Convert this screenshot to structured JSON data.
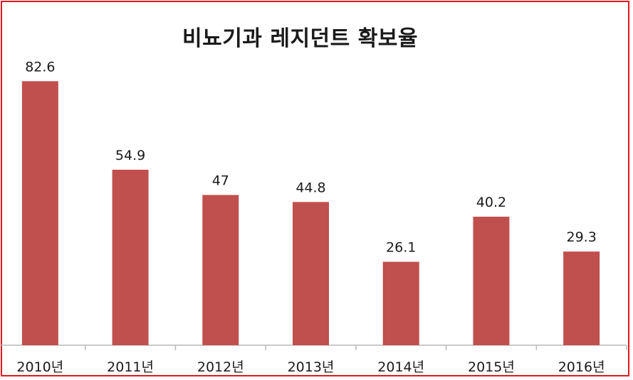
{
  "chart_data": {
    "type": "bar",
    "title": "비뇨기과 레지던트 확보율",
    "categories": [
      "2010년",
      "2011년",
      "2012년",
      "2013년",
      "2014년",
      "2015년",
      "2016년"
    ],
    "values": [
      82.6,
      54.9,
      47,
      44.8,
      26.1,
      40.2,
      29.3
    ],
    "data_labels": [
      "82.6",
      "54.9",
      "47",
      "44.8",
      "26.1",
      "40.2",
      "29.3"
    ],
    "xlabel": "",
    "ylabel": "",
    "ylim": [
      0,
      100
    ],
    "grid": false,
    "legend": "none",
    "colors": {
      "bar": "#c0504d",
      "frame": "#e0191e"
    }
  }
}
